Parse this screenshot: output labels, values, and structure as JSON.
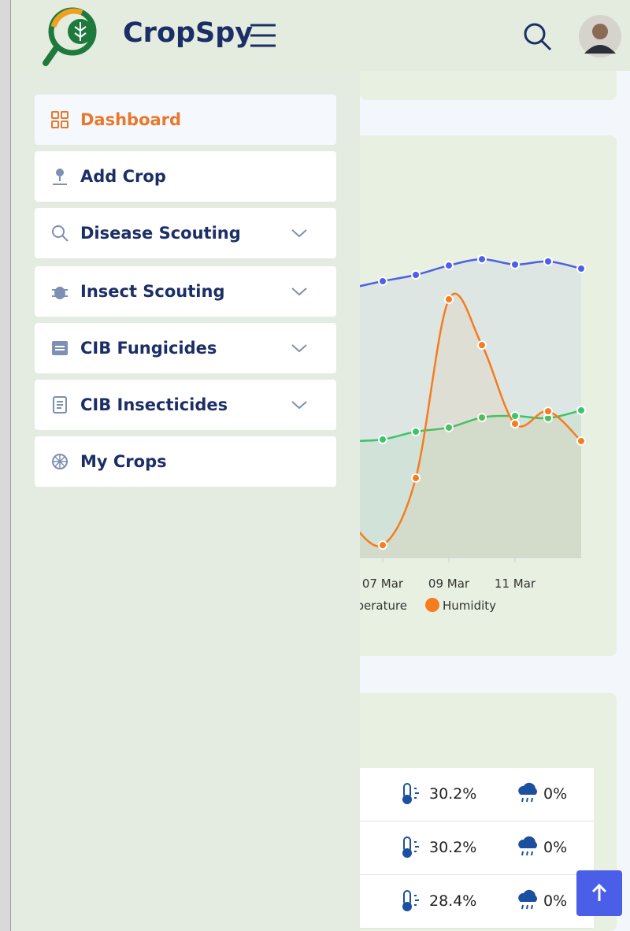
{
  "header": {
    "brand": "CropSpy"
  },
  "menu": [
    "Dashboard",
    "Add Crop",
    "Disease Scouting",
    "Insect Scouting",
    "CIB Fungicides",
    "CIB Insecticides",
    "My Crops"
  ],
  "chart_data": {
    "type": "line",
    "categories": [
      null,
      "07 Mar",
      null,
      "09 Mar",
      null,
      "11 Mar",
      null,
      null
    ],
    "ylim": [
      0,
      100
    ],
    "series": [
      {
        "color": "#4f5fe6",
        "values": [
          85.9,
          88.2,
          90.2,
          93.2,
          95.2,
          93.5,
          94.5,
          92.2
        ]
      },
      {
        "name": "Temperature",
        "color": "#3cc46a",
        "values": [
          37.2,
          37.7,
          40.2,
          41.5,
          44.7,
          45.2,
          44.5,
          47.0
        ]
      },
      {
        "name": "Humidity",
        "color": "#f57c1f",
        "values": [
          11.6,
          4.0,
          25.4,
          82.4,
          67.8,
          42.7,
          46.7,
          37.2
        ]
      }
    ]
  },
  "table": {
    "rows": [
      [
        "30.2%",
        "0%"
      ],
      [
        "30.2%",
        "0%"
      ],
      [
        "28.4%",
        "0%"
      ]
    ]
  }
}
